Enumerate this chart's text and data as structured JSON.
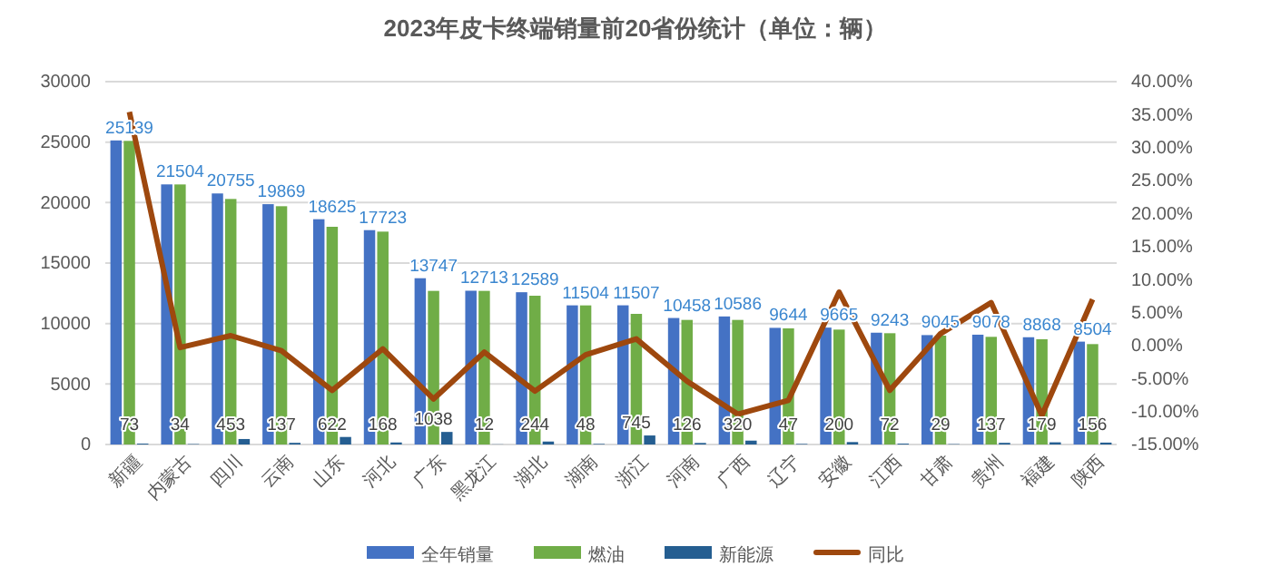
{
  "chart_data": {
    "type": "bar",
    "title": "2023年皮卡终端销量前20省份统计（单位：辆）",
    "categories": [
      "新疆",
      "内蒙古",
      "四川",
      "云南",
      "山东",
      "河北",
      "广东",
      "黑龙江",
      "湖北",
      "湖南",
      "浙江",
      "河南",
      "广西",
      "辽宁",
      "安徽",
      "江西",
      "甘肃",
      "贵州",
      "福建",
      "陕西"
    ],
    "series": [
      {
        "name": "全年销量",
        "color": "#4472c4",
        "values": [
          25139,
          21504,
          20755,
          19869,
          18625,
          17723,
          13747,
          12713,
          12589,
          11504,
          11507,
          10458,
          10586,
          9644,
          9665,
          9243,
          9045,
          9078,
          8868,
          8504
        ],
        "value_labels": [
          "25139",
          "21504",
          "20755",
          "19869",
          "18625",
          "17723",
          "13747",
          "12713",
          "12589",
          "11504",
          "11507",
          "10458",
          "10586",
          "9644",
          "9665",
          "9243",
          "9045",
          "9078",
          "8868",
          "8504"
        ]
      },
      {
        "name": "燃油",
        "color": "#70ad47",
        "values": [
          25100,
          21500,
          20300,
          19700,
          18000,
          17600,
          12700,
          12700,
          12300,
          11500,
          10800,
          10300,
          10300,
          9600,
          9500,
          9200,
          9000,
          8900,
          8700,
          8300
        ]
      },
      {
        "name": "新能源",
        "color": "#255e91",
        "values": [
          73,
          34,
          453,
          137,
          622,
          168,
          1038,
          12,
          244,
          48,
          745,
          126,
          320,
          47,
          200,
          72,
          29,
          137,
          179,
          156
        ],
        "value_labels": [
          "73",
          "34",
          "453",
          "137",
          "622",
          "168",
          "1038",
          "12",
          "244",
          "48",
          "745",
          "126",
          "320",
          "47",
          "200",
          "72",
          "29",
          "137",
          "179",
          "156"
        ]
      },
      {
        "name": "同比",
        "type": "line",
        "axis": "y2",
        "color": "#9e480e",
        "values": [
          35.4,
          -0.3,
          1.5,
          -0.8,
          -6.8,
          -0.5,
          -8.1,
          -1.0,
          -6.9,
          -1.4,
          1.0,
          -5.4,
          -10.4,
          -8.3,
          8.1,
          -6.8,
          1.8,
          6.5,
          -10.6,
          7.0
        ]
      }
    ],
    "ylim": [
      0,
      30000
    ],
    "yticks": [
      0,
      5000,
      10000,
      15000,
      20000,
      25000,
      30000
    ],
    "y2lim": [
      -15,
      40
    ],
    "y2ticks": [
      {
        "value": -15,
        "label": "-15.00%"
      },
      {
        "value": -10,
        "label": "-10.00%"
      },
      {
        "value": -5,
        "label": "-5.00%"
      },
      {
        "value": 0,
        "label": "0.00%"
      },
      {
        "value": 5,
        "label": "5.00%"
      },
      {
        "value": 10,
        "label": "10.00%"
      },
      {
        "value": 15,
        "label": "15.00%"
      },
      {
        "value": 20,
        "label": "20.00%"
      },
      {
        "value": 25,
        "label": "25.00%"
      },
      {
        "value": 30,
        "label": "30.00%"
      },
      {
        "value": 35,
        "label": "35.00%"
      },
      {
        "value": 40,
        "label": "40.00%"
      }
    ],
    "grid": "y",
    "legend": "bottom"
  }
}
